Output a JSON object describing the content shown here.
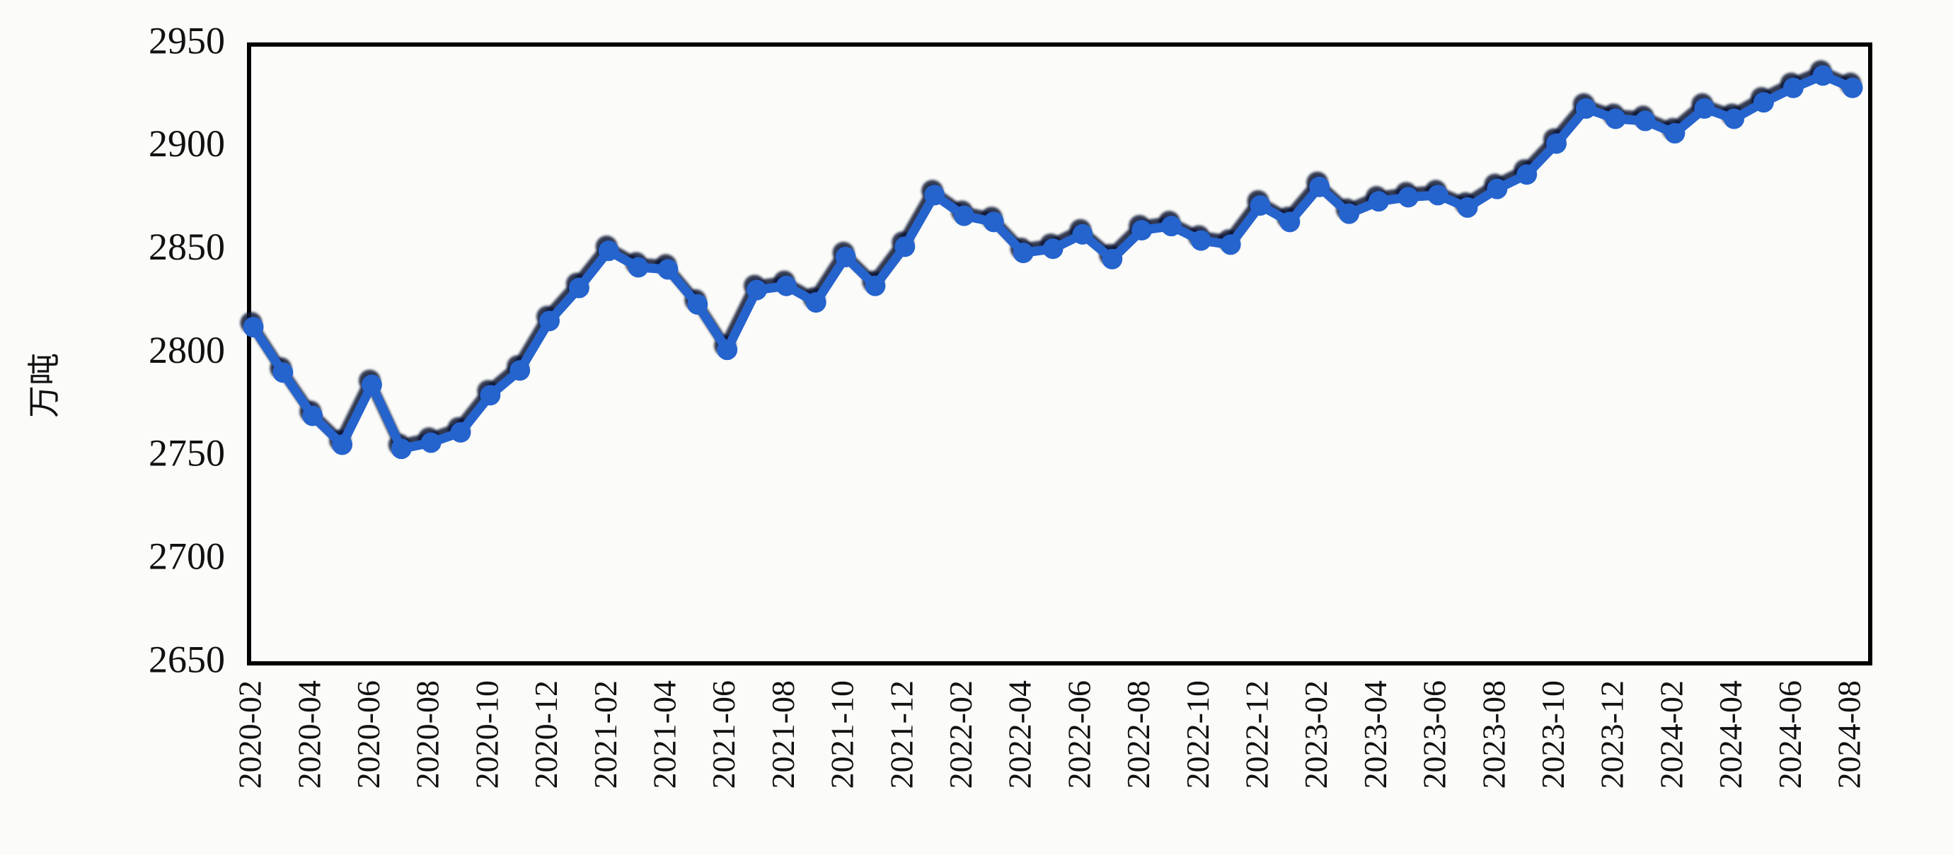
{
  "chart_data": {
    "type": "line",
    "title": "",
    "xlabel": "",
    "ylabel": "万吨",
    "ylim": [
      2650,
      2950
    ],
    "y_tick_step": 50,
    "y_tick_labels": [
      "2950",
      "2900",
      "2850",
      "2800",
      "2750",
      "2700",
      "2650"
    ],
    "grid": false,
    "legend": "none",
    "marker": "circle",
    "line_color": "#2563cd",
    "shadow_color": "#0a1936",
    "frame_color": "#000000",
    "background_color": "#fbfbf9",
    "x": [
      "2020-02",
      "2020-03",
      "2020-04",
      "2020-05",
      "2020-06",
      "2020-07",
      "2020-08",
      "2020-09",
      "2020-10",
      "2020-11",
      "2020-12",
      "2021-01",
      "2021-02",
      "2021-03",
      "2021-04",
      "2021-05",
      "2021-06",
      "2021-07",
      "2021-08",
      "2021-09",
      "2021-10",
      "2021-11",
      "2021-12",
      "2022-01",
      "2022-02",
      "2022-03",
      "2022-04",
      "2022-05",
      "2022-06",
      "2022-07",
      "2022-08",
      "2022-09",
      "2022-10",
      "2022-11",
      "2022-12",
      "2023-01",
      "2023-02",
      "2023-03",
      "2023-04",
      "2023-05",
      "2023-06",
      "2023-07",
      "2023-08",
      "2023-09",
      "2023-10",
      "2023-11",
      "2023-12",
      "2024-01",
      "2024-02",
      "2024-03",
      "2024-04",
      "2024-05",
      "2024-06",
      "2024-07",
      "2024-08"
    ],
    "values": [
      2813,
      2791,
      2770,
      2756,
      2785,
      2754,
      2757,
      2762,
      2780,
      2792,
      2816,
      2832,
      2850,
      2842,
      2841,
      2824,
      2802,
      2831,
      2833,
      2825,
      2847,
      2833,
      2852,
      2877,
      2867,
      2864,
      2849,
      2851,
      2858,
      2846,
      2860,
      2862,
      2855,
      2853,
      2872,
      2864,
      2881,
      2868,
      2874,
      2876,
      2877,
      2871,
      2880,
      2887,
      2902,
      2919,
      2914,
      2913,
      2907,
      2919,
      2914,
      2922,
      2929,
      2935,
      2929
    ],
    "x_tick_labels": [
      "2020-02",
      "2020-04",
      "2020-06",
      "2020-08",
      "2020-10",
      "2020-12",
      "2021-02",
      "2021-04",
      "2021-06",
      "2021-08",
      "2021-10",
      "2021-12",
      "2022-02",
      "2022-04",
      "2022-06",
      "2022-08",
      "2022-10",
      "2022-12",
      "2023-02",
      "2023-04",
      "2023-06",
      "2023-08",
      "2023-10",
      "2023-12",
      "2024-02",
      "2024-04",
      "2024-06",
      "2024-08"
    ],
    "x_tick_every": 2
  }
}
